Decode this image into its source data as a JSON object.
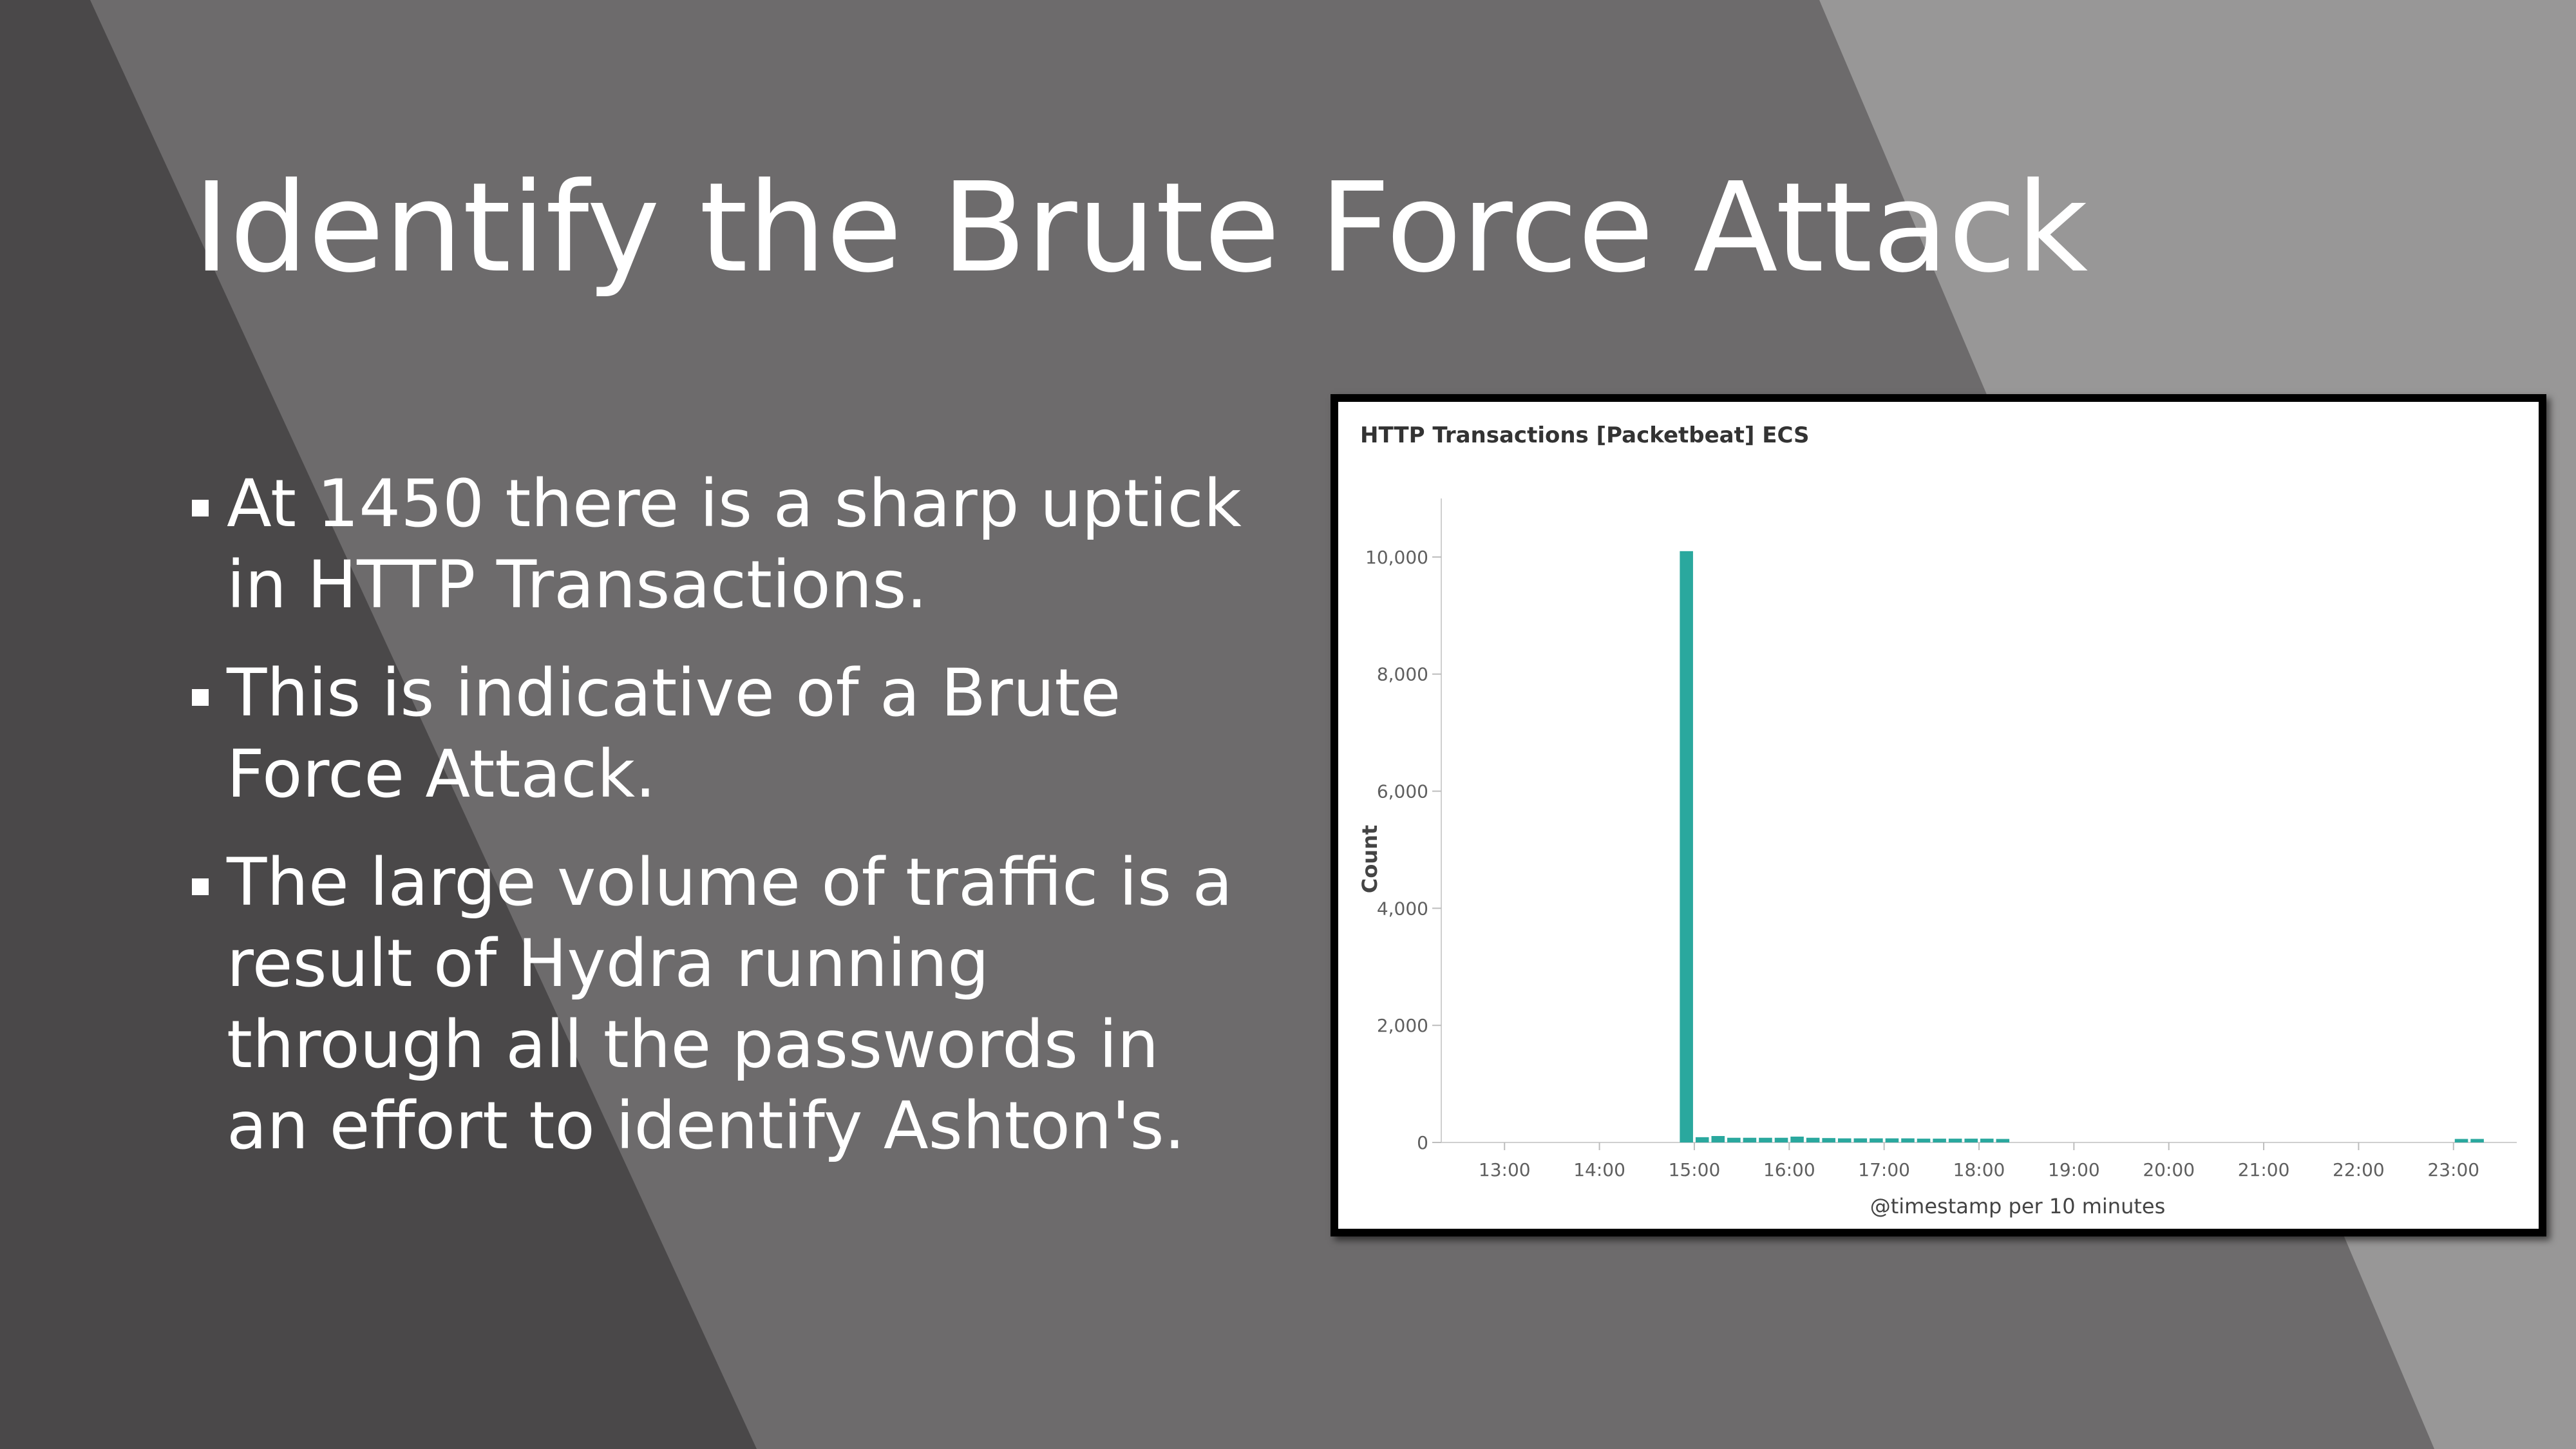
{
  "slide": {
    "title": "Identify the Brute Force Attack",
    "bullets": [
      " At 1450 there is a sharp uptick in HTTP Transactions.",
      " This is indicative of a Brute Force Attack.",
      " The large volume of traffic is a result of Hydra running through all the passwords in an effort to identify Ashton's."
    ],
    "colors": {
      "background": "#6d6b6c",
      "left_band": "#4a4849",
      "right_band": "#989797",
      "text": "#ffffff"
    }
  },
  "chart_data": {
    "type": "bar",
    "title": "HTTP Transactions [Packetbeat] ECS",
    "xlabel": "@timestamp per 10 minutes",
    "ylabel": "Count",
    "ylim": [
      0,
      11000
    ],
    "yticks": [
      0,
      2000,
      4000,
      6000,
      8000,
      10000
    ],
    "ytick_labels": [
      "0",
      "2,000",
      "4,000",
      "6,000",
      "8,000",
      "10,000"
    ],
    "xlim": [
      "12:20",
      "23:40"
    ],
    "xticks": [
      "13:00",
      "14:00",
      "15:00",
      "16:00",
      "17:00",
      "18:00",
      "19:00",
      "20:00",
      "21:00",
      "22:00",
      "23:00"
    ],
    "bar_color": "#2aa89e",
    "grid": false,
    "points": [
      {
        "x": "14:50",
        "y": 10100
      },
      {
        "x": "15:00",
        "y": 90
      },
      {
        "x": "15:10",
        "y": 110
      },
      {
        "x": "15:20",
        "y": 80
      },
      {
        "x": "15:30",
        "y": 80
      },
      {
        "x": "15:40",
        "y": 80
      },
      {
        "x": "15:50",
        "y": 80
      },
      {
        "x": "16:00",
        "y": 100
      },
      {
        "x": "16:10",
        "y": 80
      },
      {
        "x": "16:20",
        "y": 75
      },
      {
        "x": "16:30",
        "y": 70
      },
      {
        "x": "16:40",
        "y": 70
      },
      {
        "x": "16:50",
        "y": 70
      },
      {
        "x": "17:00",
        "y": 70
      },
      {
        "x": "17:10",
        "y": 70
      },
      {
        "x": "17:20",
        "y": 65
      },
      {
        "x": "17:30",
        "y": 65
      },
      {
        "x": "17:40",
        "y": 65
      },
      {
        "x": "17:50",
        "y": 65
      },
      {
        "x": "18:00",
        "y": 65
      },
      {
        "x": "18:10",
        "y": 60
      },
      {
        "x": "23:00",
        "y": 60
      },
      {
        "x": "23:10",
        "y": 60
      }
    ]
  }
}
